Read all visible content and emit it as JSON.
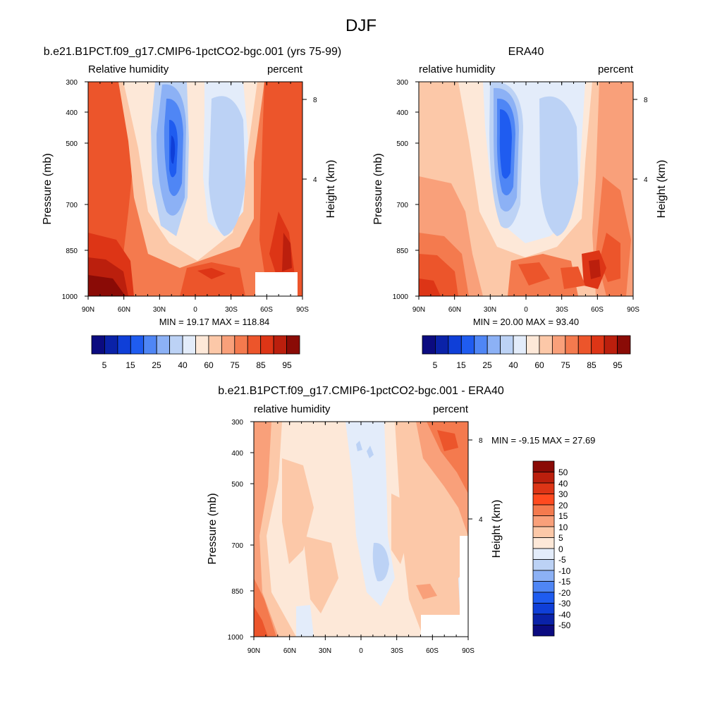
{
  "figure": {
    "title": "DJF"
  },
  "chart_data": [
    {
      "type": "heatmap",
      "title": "b.e21.B1PCT.f09_g17.CMIP6-1pctCO2-bgc.001 (yrs 75-99)",
      "left_label": "Relative humidity",
      "right_label": "percent",
      "ylabel": "Pressure (mb)",
      "y2label": "Height (km)",
      "xticks": [
        "90N",
        "60N",
        "30N",
        "0",
        "30S",
        "60S",
        "90S"
      ],
      "yticks": [
        "300",
        "400",
        "500",
        "700",
        "850",
        "1000"
      ],
      "y2ticks": [
        "8",
        "4"
      ],
      "stats": "MIN =  19.17  MAX = 118.84",
      "colorbar_labels": [
        "5",
        "15",
        "25",
        "40",
        "60",
        "75",
        "85",
        "95"
      ],
      "colors": [
        "#0b0b80",
        "#0a22a8",
        "#0f3fd8",
        "#1f5cf0",
        "#4f86f5",
        "#8cb1f5",
        "#bcd2f5",
        "#e3ecfa",
        "#fde8d8",
        "#fcc8a8",
        "#f9a07a",
        "#f47a4e",
        "#ec552b",
        "#dd3516",
        "#bb1f0d",
        "#8a0b06"
      ]
    },
    {
      "type": "heatmap",
      "title": "ERA40",
      "left_label": "relative humidity",
      "right_label": "percent",
      "ylabel": "Pressure (mb)",
      "y2label": "Height (km)",
      "xticks": [
        "90N",
        "60N",
        "30N",
        "0",
        "30S",
        "60S",
        "90S"
      ],
      "yticks": [
        "300",
        "400",
        "500",
        "700",
        "850",
        "1000"
      ],
      "y2ticks": [
        "8",
        "4"
      ],
      "stats": "MIN =  20.00  MAX =  93.40",
      "colorbar_labels": [
        "5",
        "15",
        "25",
        "40",
        "60",
        "75",
        "85",
        "95"
      ],
      "colors": [
        "#0b0b80",
        "#0a22a8",
        "#0f3fd8",
        "#1f5cf0",
        "#4f86f5",
        "#8cb1f5",
        "#bcd2f5",
        "#e3ecfa",
        "#fde8d8",
        "#fcc8a8",
        "#f9a07a",
        "#f47a4e",
        "#ec552b",
        "#dd3516",
        "#bb1f0d",
        "#8a0b06"
      ]
    },
    {
      "type": "heatmap",
      "title": "b.e21.B1PCT.f09_g17.CMIP6-1pctCO2-bgc.001 - ERA40",
      "left_label": "relative humidity",
      "right_label": "percent",
      "ylabel": "Pressure (mb)",
      "y2label": "Height (km)",
      "xticks": [
        "90N",
        "60N",
        "30N",
        "0",
        "30S",
        "60S",
        "90S"
      ],
      "yticks": [
        "300",
        "400",
        "500",
        "700",
        "850",
        "1000"
      ],
      "y2ticks": [
        "8",
        "4"
      ],
      "stats": "MIN =  -9.15  MAX =  27.69",
      "colorbar_labels": [
        "50",
        "40",
        "30",
        "20",
        "15",
        "10",
        "5",
        "0",
        "-5",
        "-10",
        "-15",
        "-20",
        "-30",
        "-40",
        "-50"
      ],
      "colors": [
        "#8a0b06",
        "#bb1f0d",
        "#dd3516",
        "#ff4a1f",
        "#f47a4e",
        "#f9a07a",
        "#fcc8a8",
        "#fde8d8",
        "#e3ecfa",
        "#bcd2f5",
        "#8cb1f5",
        "#4f86f5",
        "#1f5cf0",
        "#0f3fd8",
        "#0a22a8",
        "#0b0b80"
      ]
    }
  ]
}
